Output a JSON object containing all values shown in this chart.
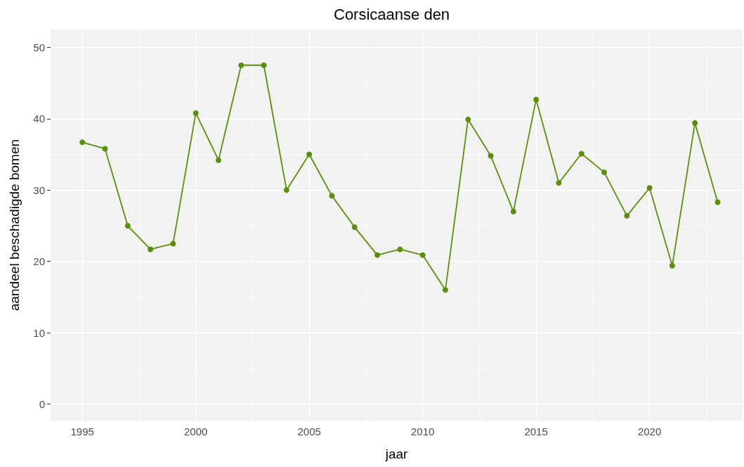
{
  "chart_data": {
    "type": "line",
    "title": "Corsicaanse den",
    "xlabel": "jaar",
    "ylabel": "aandeel beschadigde bomen",
    "x": [
      1995,
      1996,
      1997,
      1998,
      1999,
      2000,
      2001,
      2002,
      2003,
      2004,
      2005,
      2006,
      2007,
      2008,
      2009,
      2010,
      2011,
      2012,
      2013,
      2014,
      2015,
      2016,
      2017,
      2018,
      2019,
      2020,
      2021,
      2022,
      2023
    ],
    "series": [
      {
        "color": "#5b8e0c",
        "values": [
          36.7,
          35.8,
          25.0,
          21.7,
          22.5,
          40.8,
          34.2,
          47.5,
          47.5,
          30.0,
          35.0,
          29.2,
          24.8,
          20.9,
          21.7,
          20.9,
          16.0,
          39.9,
          34.8,
          27.0,
          42.7,
          31.0,
          35.1,
          32.5,
          26.4,
          30.3,
          19.4,
          39.4,
          28.3
        ]
      }
    ],
    "xlim": [
      1993.6,
      2024.1
    ],
    "xticks": [
      1995,
      2000,
      2005,
      2010,
      2015,
      2020
    ],
    "ylim": [
      -2.3,
      52.5
    ],
    "yticks": [
      0,
      10,
      20,
      30,
      40,
      50
    ],
    "grid": true,
    "marker": "circle",
    "line_style": "solid"
  }
}
